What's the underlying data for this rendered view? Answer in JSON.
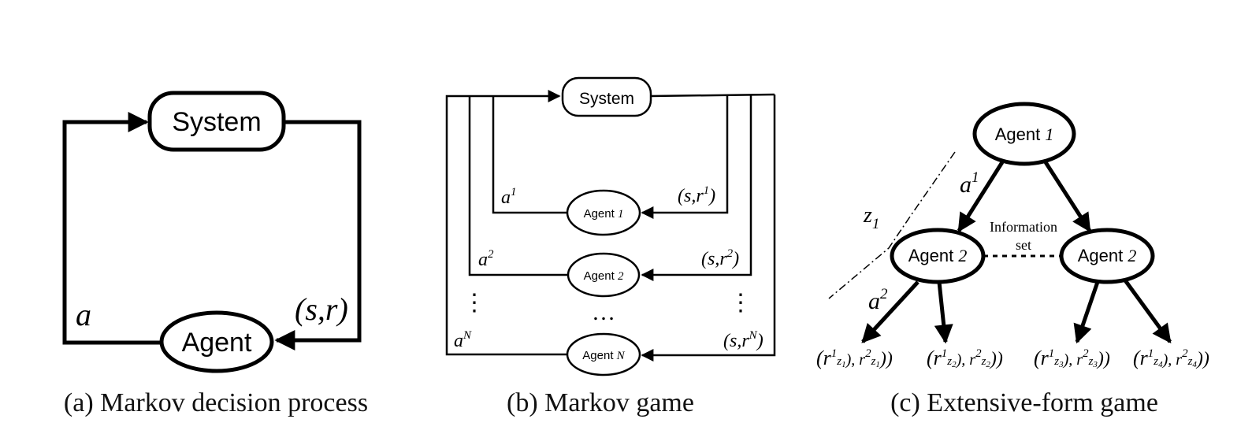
{
  "panel_a": {
    "caption": "(a) Markov decision process",
    "system_label": "System",
    "agent_label": "Agent",
    "action_label": "a",
    "feedback_label": "(s,r)"
  },
  "panel_b": {
    "caption": "(b) Markov game",
    "system_label": "System",
    "agents": [
      {
        "word": "Agent",
        "index": "1",
        "action_base": "a",
        "action_sup": "1",
        "fb_open": "(s,r",
        "fb_sup": "1",
        "fb_close": ")"
      },
      {
        "word": "Agent",
        "index": "2",
        "action_base": "a",
        "action_sup": "2",
        "fb_open": "(s,r",
        "fb_sup": "2",
        "fb_close": ")"
      },
      {
        "word": "Agent",
        "index": "N",
        "action_base": "a",
        "action_sup": "N",
        "fb_open": "(s,r",
        "fb_sup": "N",
        "fb_close": ")"
      }
    ],
    "vertical_dots": "⋮",
    "horizontal_dots": "…"
  },
  "panel_c": {
    "caption": "(c) Extensive-form game",
    "root": {
      "word": "Agent",
      "index": "1"
    },
    "left": {
      "word": "Agent",
      "index": "2"
    },
    "right": {
      "word": "Agent",
      "index": "2"
    },
    "info_set_line1": "Information",
    "info_set_line2": "set",
    "edge_a1": {
      "base": "a",
      "sup": "1"
    },
    "edge_a2": {
      "base": "a",
      "sup": "2"
    },
    "z_label": {
      "base": "z",
      "sub": "1"
    },
    "leaves": [
      {
        "open": "(r",
        "s1": "1",
        "z1": "z",
        "zi1": "1",
        "mid": "), r",
        "s2": "2",
        "z2": "z",
        "zi2": "1",
        "close": "))"
      },
      {
        "open": "(r",
        "s1": "1",
        "z1": "z",
        "zi1": "2",
        "mid": "), r",
        "s2": "2",
        "z2": "z",
        "zi2": "2",
        "close": "))"
      },
      {
        "open": "(r",
        "s1": "1",
        "z1": "z",
        "zi1": "3",
        "mid": "), r",
        "s2": "2",
        "z2": "z",
        "zi2": "3",
        "close": "))"
      },
      {
        "open": "(r",
        "s1": "1",
        "z1": "z",
        "zi1": "4",
        "mid": "), r",
        "s2": "2",
        "z2": "z",
        "zi2": "4",
        "close": "))"
      }
    ]
  }
}
